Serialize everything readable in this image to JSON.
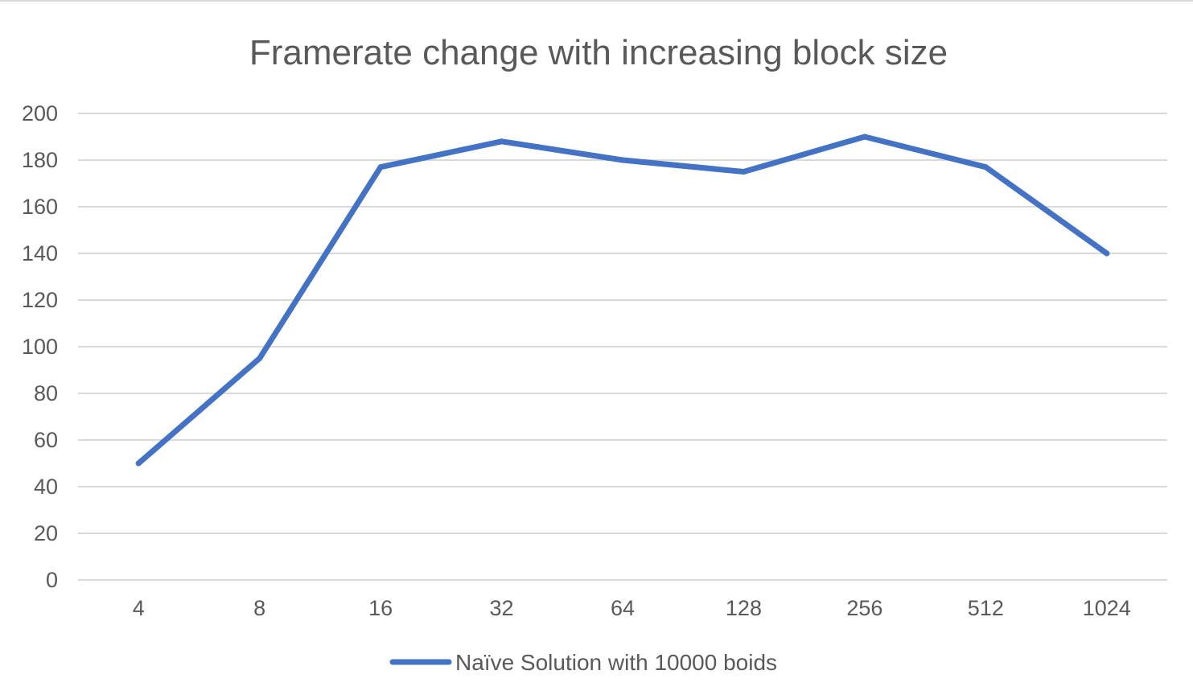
{
  "chart_data": {
    "type": "line",
    "title": "Framerate change with increasing block size",
    "xlabel": "",
    "ylabel": "",
    "categories": [
      "4",
      "8",
      "16",
      "32",
      "64",
      "128",
      "256",
      "512",
      "1024"
    ],
    "series": [
      {
        "name": "Naïve Solution with 10000 boids",
        "values": [
          50,
          95,
          177,
          188,
          180,
          175,
          190,
          177,
          140
        ],
        "color": "#4472c4"
      }
    ],
    "ylim": [
      0,
      200
    ],
    "yticks": [
      0,
      20,
      40,
      60,
      80,
      100,
      120,
      140,
      160,
      180,
      200
    ],
    "grid": true,
    "legend": "bottom"
  }
}
